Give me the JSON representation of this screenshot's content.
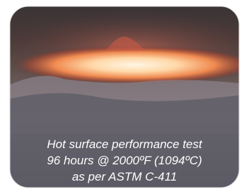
{
  "caption": {
    "lines": [
      "Hot surface performance test",
      "96 hours @ 2000ºF (1094ºC)",
      "as per ASTM C-411"
    ]
  }
}
